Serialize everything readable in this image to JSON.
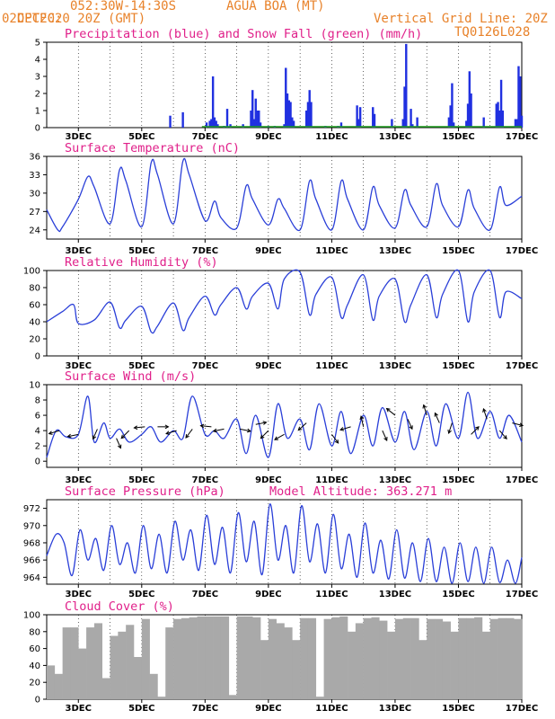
{
  "header": {
    "source": "CPTEC:",
    "coords": "052:30W-14:30S",
    "station": "AGUA BOA (MT)",
    "datetime": "02DEC2020 20Z (GMT)",
    "grid_note": "Vertical Grid Line: 20Z",
    "model": "TQ0126L028"
  },
  "colors": {
    "header": "#e8822a",
    "title": "#e0208a",
    "line": "#2a3fd8",
    "precip": "#2030e0",
    "snow": "#1a9a1a",
    "cloud": "#a9a9a9",
    "wind_arrow": "#000000"
  },
  "chart_data": [
    {
      "type": "bar",
      "title": "Precipitation (blue) and Snow Fall (green) (mm/h)",
      "x_ticks": [
        "3DEC",
        "5DEC",
        "7DEC",
        "9DEC",
        "11DEC",
        "13DEC",
        "15DEC",
        "17DEC"
      ],
      "xlim": [
        0,
        15
      ],
      "ylim": [
        0,
        5
      ],
      "y_ticks": [
        0,
        1,
        2,
        3,
        4,
        5
      ],
      "series": [
        {
          "name": "Precipitation",
          "x": [
            3.9,
            4.3,
            5.05,
            5.15,
            5.2,
            5.25,
            5.3,
            5.35,
            5.4,
            5.6,
            5.7,
            5.8,
            6.2,
            6.45,
            6.5,
            6.55,
            6.6,
            6.65,
            6.7,
            6.75,
            7.0,
            7.2,
            7.5,
            7.55,
            7.6,
            7.65,
            7.7,
            7.75,
            7.8,
            8.2,
            8.25,
            8.3,
            8.35,
            8.8,
            9.2,
            9.3,
            9.8,
            9.85,
            9.9,
            10.3,
            10.35,
            10.9,
            11.25,
            11.3,
            11.35,
            11.5,
            11.55,
            11.7,
            12.7,
            12.75,
            12.8,
            12.85,
            13.25,
            13.3,
            13.35,
            13.4,
            13.8,
            14.2,
            14.25,
            14.3,
            14.35,
            14.4,
            14.8,
            14.85,
            14.9,
            14.95,
            15.0
          ],
          "values": [
            0.7,
            0.9,
            0.3,
            0.4,
            0.5,
            3.0,
            0.6,
            0.4,
            0.2,
            0.1,
            1.1,
            0.2,
            0.2,
            1.0,
            2.2,
            0.5,
            1.7,
            1.0,
            1.0,
            0.3,
            0.1,
            0.1,
            0.2,
            3.5,
            2.0,
            1.6,
            1.5,
            0.6,
            0.4,
            1.0,
            1.5,
            2.2,
            1.5,
            0.1,
            0.1,
            0.3,
            1.3,
            0.5,
            1.2,
            1.2,
            0.8,
            0.5,
            0.5,
            2.4,
            4.9,
            1.1,
            0.2,
            0.6,
            0.6,
            1.3,
            2.6,
            0.3,
            0.4,
            1.4,
            3.3,
            2.0,
            0.6,
            1.4,
            1.5,
            1.0,
            2.8,
            1.0,
            0.5,
            0.5,
            3.6,
            3.0,
            0.7
          ]
        },
        {
          "name": "Snow Fall",
          "x": [],
          "values": []
        }
      ]
    },
    {
      "type": "line",
      "title": "Surface Temperature (nC)",
      "x_ticks": [
        "3DEC",
        "5DEC",
        "7DEC",
        "9DEC",
        "11DEC",
        "13DEC",
        "15DEC",
        "17DEC"
      ],
      "xlim": [
        0,
        15
      ],
      "ylim": [
        22.5,
        36
      ],
      "y_ticks": [
        24,
        27,
        30,
        33,
        36
      ],
      "x": [
        0,
        0.35,
        0.5,
        1.0,
        1.3,
        1.5,
        2.0,
        2.3,
        2.5,
        3.0,
        3.3,
        3.5,
        4.0,
        4.3,
        4.5,
        5.0,
        5.3,
        5.5,
        6.0,
        6.3,
        6.5,
        7.0,
        7.3,
        7.5,
        8.0,
        8.3,
        8.5,
        9.0,
        9.3,
        9.5,
        10.0,
        10.3,
        10.5,
        11.0,
        11.3,
        11.5,
        12.0,
        12.3,
        12.5,
        13.0,
        13.3,
        13.5,
        14.0,
        14.3,
        14.5,
        15.0
      ],
      "values": [
        27.3,
        24.0,
        24.5,
        29.0,
        32.7,
        31.0,
        25.0,
        33.8,
        32.0,
        24.5,
        35.0,
        33.0,
        25.0,
        35.2,
        33.0,
        25.5,
        28.7,
        26.0,
        24.3,
        31.2,
        29.0,
        24.8,
        29.0,
        27.5,
        24.0,
        32.0,
        29.0,
        24.0,
        32.0,
        29.0,
        24.0,
        31.0,
        28.0,
        24.3,
        30.5,
        28.0,
        24.5,
        31.5,
        28.0,
        24.5,
        30.5,
        27.5,
        24.0,
        31.0,
        28.0,
        29.5
      ]
    },
    {
      "type": "line",
      "title": "Relative Humidity (%)",
      "x_ticks": [
        "3DEC",
        "5DEC",
        "7DEC",
        "9DEC",
        "11DEC",
        "13DEC",
        "15DEC",
        "17DEC"
      ],
      "xlim": [
        0,
        15
      ],
      "ylim": [
        0,
        100
      ],
      "y_ticks": [
        0,
        20,
        40,
        60,
        80,
        100
      ],
      "x": [
        0,
        0.5,
        0.85,
        1.0,
        1.5,
        2.0,
        2.3,
        2.5,
        3.0,
        3.3,
        3.5,
        4.0,
        4.3,
        4.5,
        5.0,
        5.3,
        5.5,
        6.0,
        6.3,
        6.5,
        7.0,
        7.3,
        7.5,
        8.0,
        8.3,
        8.5,
        9.0,
        9.3,
        9.5,
        10.0,
        10.3,
        10.5,
        11.0,
        11.3,
        11.5,
        12.0,
        12.3,
        12.5,
        13.0,
        13.3,
        13.5,
        14.0,
        14.3,
        14.5,
        15.0
      ],
      "values": [
        40,
        52,
        60,
        38,
        42,
        63,
        33,
        42,
        58,
        28,
        35,
        62,
        30,
        45,
        70,
        48,
        60,
        80,
        55,
        70,
        85,
        55,
        90,
        98,
        48,
        72,
        92,
        45,
        60,
        95,
        42,
        70,
        90,
        40,
        60,
        95,
        45,
        72,
        100,
        40,
        75,
        100,
        45,
        75,
        67
      ]
    },
    {
      "type": "line",
      "title": "Surface Wind (m/s)",
      "x_ticks": [
        "3DEC",
        "5DEC",
        "7DEC",
        "9DEC",
        "11DEC",
        "13DEC",
        "15DEC",
        "17DEC"
      ],
      "xlim": [
        0,
        15
      ],
      "ylim": [
        -0.8,
        10
      ],
      "y_ticks": [
        0,
        2,
        4,
        6,
        8,
        10
      ],
      "x": [
        0,
        0.3,
        0.6,
        1.0,
        1.3,
        1.5,
        1.8,
        2.0,
        2.3,
        2.6,
        3.0,
        3.3,
        3.6,
        4.0,
        4.3,
        4.6,
        5.0,
        5.3,
        5.6,
        6.0,
        6.3,
        6.6,
        7.0,
        7.3,
        7.6,
        8.0,
        8.3,
        8.6,
        9.0,
        9.3,
        9.6,
        10.0,
        10.3,
        10.6,
        11.0,
        11.3,
        11.6,
        12.0,
        12.3,
        12.6,
        13.0,
        13.3,
        13.6,
        14.0,
        14.3,
        14.6,
        15.0
      ],
      "values": [
        0.5,
        4.0,
        3.2,
        3.5,
        8.5,
        2.5,
        5.0,
        3.0,
        4.2,
        2.5,
        3.5,
        4.5,
        2.5,
        4.0,
        3.0,
        8.5,
        3.5,
        4.0,
        3.0,
        5.5,
        1.0,
        6.0,
        0.5,
        7.5,
        3.0,
        5.5,
        1.5,
        7.5,
        2.0,
        6.5,
        1.0,
        6.0,
        2.0,
        7.0,
        2.5,
        6.5,
        1.5,
        6.5,
        2.0,
        7.5,
        3.0,
        9.0,
        3.0,
        6.5,
        3.0,
        6.0,
        2.5
      ],
      "arrows": [
        {
          "x": 0.4,
          "speed": 4.0,
          "dx": -1,
          "dy": 0.3
        },
        {
          "x": 1.0,
          "speed": 3.5,
          "dx": -1,
          "dy": 0.2
        },
        {
          "x": 1.6,
          "speed": 4.2,
          "dx": -0.4,
          "dy": 0.9
        },
        {
          "x": 2.2,
          "speed": 3.0,
          "dx": 0.4,
          "dy": 0.9
        },
        {
          "x": 2.6,
          "speed": 4.0,
          "dx": -0.7,
          "dy": 0.7
        },
        {
          "x": 3.1,
          "speed": 4.5,
          "dx": -1,
          "dy": 0.1
        },
        {
          "x": 3.5,
          "speed": 4.5,
          "dx": 1,
          "dy": 0.0
        },
        {
          "x": 4.1,
          "speed": 4.0,
          "dx": -1,
          "dy": 0.3
        },
        {
          "x": 4.6,
          "speed": 4.2,
          "dx": -0.6,
          "dy": 0.8
        },
        {
          "x": 5.2,
          "speed": 4.5,
          "dx": -1,
          "dy": -0.1
        },
        {
          "x": 5.6,
          "speed": 4.2,
          "dx": -1,
          "dy": 0.2
        },
        {
          "x": 6.1,
          "speed": 4.2,
          "dx": 1,
          "dy": 0.2
        },
        {
          "x": 6.6,
          "speed": 4.8,
          "dx": 1,
          "dy": -0.2
        },
        {
          "x": 7.0,
          "speed": 4.0,
          "dx": -0.7,
          "dy": 0.7
        },
        {
          "x": 7.5,
          "speed": 3.5,
          "dx": -0.9,
          "dy": 0.5
        },
        {
          "x": 8.2,
          "speed": 5.0,
          "dx": -1,
          "dy": 0.9
        },
        {
          "x": 9.0,
          "speed": 3.5,
          "dx": 0.6,
          "dy": 0.8
        },
        {
          "x": 9.6,
          "speed": 4.5,
          "dx": -1,
          "dy": 0.3
        },
        {
          "x": 10.0,
          "speed": 4.5,
          "dx": -0.2,
          "dy": -0.9
        },
        {
          "x": 10.6,
          "speed": 4.0,
          "dx": 0.4,
          "dy": 0.9
        },
        {
          "x": 11.0,
          "speed": 6.0,
          "dx": -1,
          "dy": -0.8
        },
        {
          "x": 11.4,
          "speed": 5.5,
          "dx": 0.4,
          "dy": 0.9
        },
        {
          "x": 12.0,
          "speed": 6.0,
          "dx": -0.3,
          "dy": -1
        },
        {
          "x": 12.4,
          "speed": 5.0,
          "dx": -0.4,
          "dy": -0.9
        },
        {
          "x": 12.8,
          "speed": 5.0,
          "dx": -0.3,
          "dy": 0.9
        },
        {
          "x": 13.4,
          "speed": 3.5,
          "dx": 0.8,
          "dy": -0.8
        },
        {
          "x": 13.9,
          "speed": 5.5,
          "dx": -0.3,
          "dy": -0.9
        },
        {
          "x": 14.3,
          "speed": 4.0,
          "dx": 0.6,
          "dy": 0.7
        },
        {
          "x": 14.7,
          "speed": 5.0,
          "dx": 0.8,
          "dy": 0.2
        }
      ]
    },
    {
      "type": "line",
      "title": "Surface Pressure (hPa)",
      "annotation": "Model Altitude: 363.271 m",
      "x_ticks": [
        "3DEC",
        "5DEC",
        "7DEC",
        "9DEC",
        "11DEC",
        "13DEC",
        "15DEC",
        "17DEC"
      ],
      "xlim": [
        0,
        15
      ],
      "ylim": [
        963.2,
        973
      ],
      "y_ticks": [
        964,
        966,
        968,
        970,
        972
      ],
      "x": [
        0,
        0.3,
        0.55,
        0.8,
        1.05,
        1.3,
        1.55,
        1.8,
        2.05,
        2.3,
        2.55,
        2.8,
        3.05,
        3.3,
        3.55,
        3.8,
        4.05,
        4.3,
        4.55,
        4.8,
        5.05,
        5.3,
        5.55,
        5.8,
        6.05,
        6.3,
        6.55,
        6.8,
        7.05,
        7.3,
        7.55,
        7.8,
        8.05,
        8.3,
        8.55,
        8.8,
        9.05,
        9.3,
        9.55,
        9.8,
        10.05,
        10.3,
        10.55,
        10.8,
        11.05,
        11.3,
        11.55,
        11.8,
        12.05,
        12.3,
        12.55,
        12.8,
        13.05,
        13.3,
        13.55,
        13.8,
        14.05,
        14.3,
        14.55,
        14.8,
        15.0
      ],
      "values": [
        966.5,
        969.0,
        968.0,
        964.2,
        969.5,
        966.0,
        968.5,
        964.8,
        970.0,
        965.5,
        968.0,
        964.5,
        970.0,
        965.0,
        969.0,
        964.5,
        970.5,
        966.0,
        969.5,
        964.8,
        971.2,
        965.5,
        969.8,
        964.5,
        971.5,
        965.8,
        970.5,
        964.3,
        972.5,
        966.0,
        970.0,
        964.5,
        972.3,
        965.8,
        970.2,
        964.5,
        971.3,
        965.0,
        969.0,
        964.0,
        970.3,
        964.5,
        968.3,
        963.8,
        969.5,
        963.9,
        968.0,
        963.5,
        968.5,
        963.5,
        967.5,
        963.3,
        968.0,
        963.5,
        967.5,
        963.3,
        967.5,
        963.4,
        966.0,
        963.3,
        966.3
      ]
    },
    {
      "type": "bar",
      "title": "Cloud Cover (%)",
      "x_ticks": [
        "3DEC",
        "5DEC",
        "7DEC",
        "9DEC",
        "11DEC",
        "13DEC",
        "15DEC",
        "17DEC"
      ],
      "xlim": [
        0,
        15
      ],
      "ylim": [
        0,
        100
      ],
      "y_ticks": [
        0,
        20,
        40,
        60,
        80,
        100
      ],
      "x": [
        0,
        0.25,
        0.5,
        0.75,
        1.0,
        1.25,
        1.5,
        1.75,
        2.0,
        2.25,
        2.5,
        2.75,
        3.0,
        3.25,
        3.5,
        3.75,
        4.0,
        4.25,
        4.5,
        4.75,
        5.0,
        5.25,
        5.5,
        5.75,
        6.0,
        6.25,
        6.5,
        6.75,
        7.0,
        7.25,
        7.5,
        7.75,
        8.0,
        8.25,
        8.5,
        8.75,
        9.0,
        9.25,
        9.5,
        9.75,
        10.0,
        10.25,
        10.5,
        10.75,
        11.0,
        11.25,
        11.5,
        11.75,
        12.0,
        12.25,
        12.5,
        12.75,
        13.0,
        13.25,
        13.5,
        13.75,
        14.0,
        14.25,
        14.5,
        14.75
      ],
      "values": [
        40,
        30,
        85,
        85,
        60,
        85,
        90,
        25,
        75,
        80,
        88,
        50,
        95,
        30,
        3,
        85,
        95,
        96,
        97,
        98,
        98,
        98,
        98,
        5,
        98,
        98,
        97,
        70,
        95,
        90,
        85,
        70,
        96,
        96,
        3,
        95,
        97,
        98,
        80,
        90,
        96,
        97,
        93,
        80,
        95,
        96,
        96,
        70,
        95,
        95,
        92,
        80,
        96,
        96,
        97,
        80,
        95,
        96,
        96,
        95
      ]
    }
  ]
}
